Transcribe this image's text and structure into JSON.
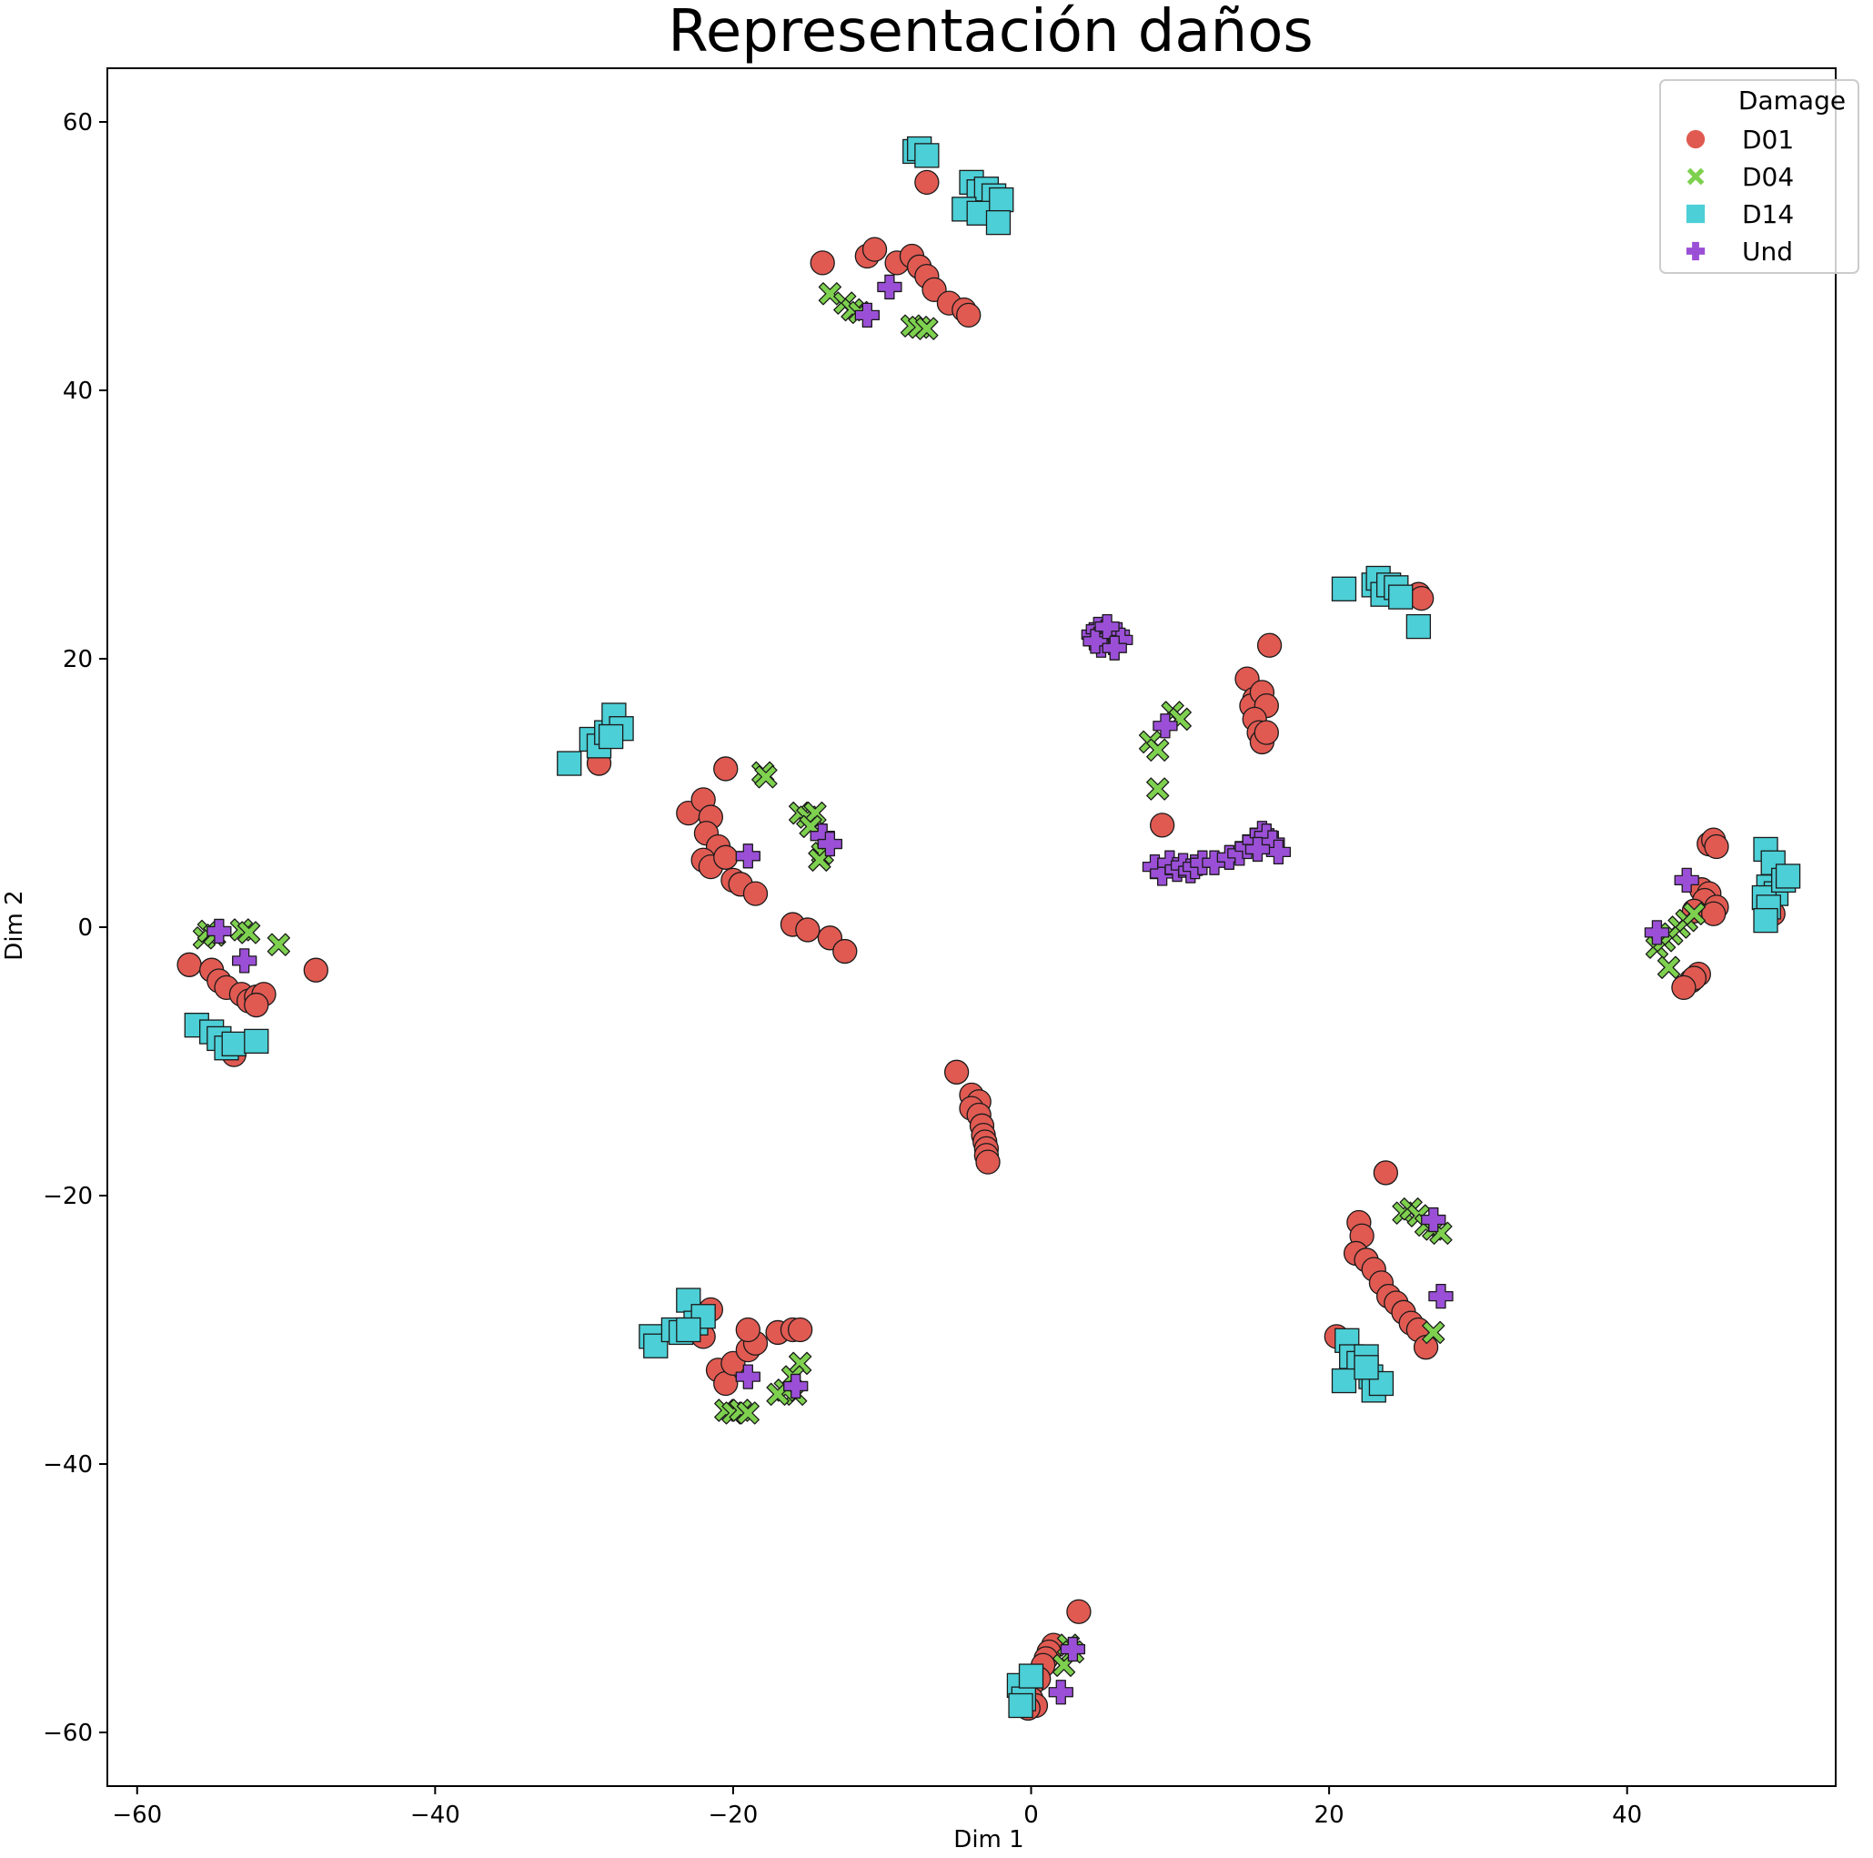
{
  "chart_data": {
    "type": "scatter",
    "title": "Representación daños",
    "xlabel": "Dim 1",
    "ylabel": "Dim 2",
    "xlim": [
      -62,
      54
    ],
    "ylim": [
      -64,
      64
    ],
    "xticks": [
      -60,
      -40,
      -20,
      0,
      20,
      40
    ],
    "yticks": [
      -60,
      -40,
      -20,
      0,
      20,
      40,
      60
    ],
    "xtick_labels": [
      "−60",
      "−40",
      "−20",
      "0",
      "20",
      "40"
    ],
    "ytick_labels": [
      "−60",
      "−40",
      "−20",
      "0",
      "20",
      "40",
      "60"
    ],
    "grid": false,
    "legend": {
      "title": "Damage",
      "placement": "top-right"
    },
    "series": [
      {
        "name": "D01",
        "marker": "circle",
        "color": "#e05a52",
        "points": [
          [
            -7,
            55.5
          ],
          [
            -14,
            49.5
          ],
          [
            -11,
            50
          ],
          [
            -10.5,
            50.5
          ],
          [
            -9,
            49.5
          ],
          [
            -8,
            50
          ],
          [
            -7.5,
            49.2
          ],
          [
            -7,
            48.5
          ],
          [
            -6.5,
            47.5
          ],
          [
            -5.5,
            46.5
          ],
          [
            -4.5,
            46
          ],
          [
            -4.2,
            45.6
          ],
          [
            -20.5,
            11.8
          ],
          [
            -23,
            8.5
          ],
          [
            -22,
            9.5
          ],
          [
            -21.5,
            8.2
          ],
          [
            -21.8,
            7
          ],
          [
            -21,
            6
          ],
          [
            -22,
            5
          ],
          [
            -21.5,
            4.5
          ],
          [
            -20.5,
            5.2
          ],
          [
            -20,
            3.5
          ],
          [
            -19.5,
            3.2
          ],
          [
            -18.5,
            2.5
          ],
          [
            -16,
            0.2
          ],
          [
            -15,
            -0.2
          ],
          [
            -13.5,
            -0.8
          ],
          [
            -12.5,
            -1.8
          ],
          [
            -29,
            12.2
          ],
          [
            -56.5,
            -2.8
          ],
          [
            -55,
            -3.2
          ],
          [
            -54.5,
            -4
          ],
          [
            -54,
            -4.5
          ],
          [
            -53,
            -5
          ],
          [
            -52.5,
            -5.5
          ],
          [
            -52,
            -5.2
          ],
          [
            -51.5,
            -5
          ],
          [
            -52,
            -5.8
          ],
          [
            -48,
            -3.2
          ],
          [
            -53.5,
            -9.5
          ],
          [
            -5,
            -10.8
          ],
          [
            -4,
            -12.5
          ],
          [
            -3.5,
            -13
          ],
          [
            -4,
            -13.5
          ],
          [
            -3.5,
            -14
          ],
          [
            -3.3,
            -14.8
          ],
          [
            -3.2,
            -15.5
          ],
          [
            -3.1,
            -16
          ],
          [
            -3,
            -16.5
          ],
          [
            -3,
            -17
          ],
          [
            -2.9,
            -17.5
          ],
          [
            -21.5,
            -28.5
          ],
          [
            -21,
            -33
          ],
          [
            -20.5,
            -34
          ],
          [
            -20,
            -32.5
          ],
          [
            -19,
            -31.5
          ],
          [
            -18.5,
            -31
          ],
          [
            -19,
            -30
          ],
          [
            -17,
            -30.2
          ],
          [
            -16,
            -30
          ],
          [
            -15.5,
            -30
          ],
          [
            -22,
            -30.5
          ],
          [
            8.8,
            7.6
          ],
          [
            14.5,
            18.5
          ],
          [
            15,
            17
          ],
          [
            14.8,
            16.5
          ],
          [
            15.5,
            17.5
          ],
          [
            15.8,
            16.5
          ],
          [
            15,
            15.5
          ],
          [
            15.3,
            14.5
          ],
          [
            15.5,
            13.8
          ],
          [
            15.8,
            14.5
          ],
          [
            16,
            21
          ],
          [
            26,
            24.8
          ],
          [
            26.2,
            24.5
          ],
          [
            23.8,
            -18.3
          ],
          [
            22,
            -22
          ],
          [
            22.2,
            -23
          ],
          [
            21.8,
            -24.3
          ],
          [
            22.5,
            -24.8
          ],
          [
            23,
            -25.5
          ],
          [
            23.5,
            -26.5
          ],
          [
            24,
            -27.5
          ],
          [
            24.5,
            -28
          ],
          [
            25,
            -28.7
          ],
          [
            25.5,
            -29.5
          ],
          [
            26,
            -30
          ],
          [
            26.5,
            -31.3
          ],
          [
            20.5,
            -30.5
          ],
          [
            45.5,
            6.2
          ],
          [
            45.8,
            6.5
          ],
          [
            46,
            6
          ],
          [
            45,
            2.8
          ],
          [
            45.5,
            2.5
          ],
          [
            45.2,
            2
          ],
          [
            46,
            1.5
          ],
          [
            44.5,
            1.2
          ],
          [
            45.8,
            1
          ],
          [
            44.8,
            -3.5
          ],
          [
            44.3,
            -4
          ],
          [
            44.5,
            -3.8
          ],
          [
            43.8,
            -4.5
          ],
          [
            49.5,
            1.5
          ],
          [
            49.8,
            1
          ],
          [
            3.2,
            -51
          ],
          [
            1.5,
            -53.5
          ],
          [
            1.2,
            -54
          ],
          [
            1,
            -54.5
          ],
          [
            0.8,
            -55
          ],
          [
            0.5,
            -56
          ],
          [
            0,
            -56.5
          ],
          [
            -0.5,
            -57
          ],
          [
            0,
            -57.5
          ],
          [
            0.3,
            -58
          ],
          [
            -0.2,
            -58.2
          ]
        ]
      },
      {
        "name": "D04",
        "marker": "x",
        "color": "#7ed14f",
        "points": [
          [
            -13.5,
            47.2
          ],
          [
            -12.5,
            46.5
          ],
          [
            -12,
            46
          ],
          [
            -11.5,
            45.8
          ],
          [
            -8,
            44.8
          ],
          [
            -7.5,
            44.7
          ],
          [
            -7,
            44.6
          ],
          [
            -18,
            11.5
          ],
          [
            -17.8,
            11.2
          ],
          [
            -15.5,
            8.5
          ],
          [
            -15,
            8.2
          ],
          [
            -14.5,
            8.5
          ],
          [
            -14,
            5.5
          ],
          [
            -14.2,
            5
          ],
          [
            -14.8,
            7.5
          ],
          [
            -55.5,
            -0.8
          ],
          [
            -55.2,
            -0.3
          ],
          [
            -54.8,
            -0.6
          ],
          [
            -53,
            -0.2
          ],
          [
            -52.5,
            -0.4
          ],
          [
            -50.5,
            -1.3
          ],
          [
            8,
            13.8
          ],
          [
            8.5,
            13.2
          ],
          [
            9.5,
            16
          ],
          [
            10,
            15.5
          ],
          [
            8.5,
            10.3
          ],
          [
            -20.5,
            -36
          ],
          [
            -20,
            -36.2
          ],
          [
            -19.5,
            -36
          ],
          [
            -19,
            -36.2
          ],
          [
            -15.5,
            -32.5
          ],
          [
            -16,
            -33.5
          ],
          [
            -15.8,
            -34.8
          ],
          [
            -16.5,
            -34.5
          ],
          [
            -17,
            -34.8
          ],
          [
            25,
            -21.3
          ],
          [
            25.5,
            -21
          ],
          [
            26,
            -21.5
          ],
          [
            26.5,
            -22.2
          ],
          [
            27,
            -22.5
          ],
          [
            27.5,
            -22.8
          ],
          [
            27,
            -30.2
          ],
          [
            42,
            -1.5
          ],
          [
            42.5,
            -1
          ],
          [
            43,
            -0.5
          ],
          [
            43.5,
            0
          ],
          [
            44,
            0.5
          ],
          [
            44.5,
            1
          ],
          [
            42.8,
            -3
          ],
          [
            2.5,
            -53.5
          ],
          [
            2.8,
            -54
          ],
          [
            2.2,
            -55
          ]
        ]
      },
      {
        "name": "D14",
        "marker": "square",
        "color": "#4ccfd6",
        "points": [
          [
            -7.8,
            57.8
          ],
          [
            -7.5,
            58
          ],
          [
            -7,
            57.5
          ],
          [
            -4,
            55.5
          ],
          [
            -3.5,
            54.8
          ],
          [
            -3,
            55
          ],
          [
            -2.5,
            54.5
          ],
          [
            -4.5,
            53.5
          ],
          [
            -3.5,
            53.2
          ],
          [
            -2,
            54.2
          ],
          [
            -2.2,
            52.5
          ],
          [
            -31,
            12.2
          ],
          [
            -29.5,
            14
          ],
          [
            -29,
            13.5
          ],
          [
            -28.5,
            14.5
          ],
          [
            -28,
            15.8
          ],
          [
            -27.5,
            14.8
          ],
          [
            -28.2,
            14.2
          ],
          [
            -56,
            -7.3
          ],
          [
            -55,
            -7.8
          ],
          [
            -54.5,
            -8.3
          ],
          [
            -54,
            -9
          ],
          [
            -53.5,
            -8.7
          ],
          [
            -52,
            -8.5
          ],
          [
            21,
            25.2
          ],
          [
            23,
            25.5
          ],
          [
            23.3,
            26
          ],
          [
            23.6,
            24.8
          ],
          [
            24,
            25.5
          ],
          [
            24.5,
            25.3
          ],
          [
            24.8,
            24.6
          ],
          [
            26,
            22.4
          ],
          [
            -25.5,
            -30.5
          ],
          [
            -25.2,
            -31.2
          ],
          [
            -24,
            -30
          ],
          [
            -23.5,
            -30.2
          ],
          [
            -23,
            -27.8
          ],
          [
            -22.5,
            -29.5
          ],
          [
            -22,
            -29
          ],
          [
            -23,
            -30
          ],
          [
            21.2,
            -30.8
          ],
          [
            21.5,
            -32
          ],
          [
            22,
            -32.5
          ],
          [
            22.5,
            -32
          ],
          [
            21,
            -33.8
          ],
          [
            22.8,
            -33.5
          ],
          [
            23,
            -34.5
          ],
          [
            23.5,
            -34
          ],
          [
            22.5,
            -32.8
          ],
          [
            49.3,
            5.8
          ],
          [
            49.8,
            4.8
          ],
          [
            49.5,
            3
          ],
          [
            50,
            2.5
          ],
          [
            49.2,
            2.2
          ],
          [
            50.5,
            3.5
          ],
          [
            49.5,
            1.5
          ],
          [
            49.3,
            0.5
          ],
          [
            50.8,
            3.8
          ],
          [
            -0.8,
            -56.5
          ],
          [
            -0.5,
            -57.5
          ],
          [
            0,
            -55.8
          ],
          [
            -0.7,
            -58
          ]
        ]
      },
      {
        "name": "Und",
        "marker": "plus",
        "color": "#9b4fd6",
        "points": [
          [
            -9.5,
            47.7
          ],
          [
            -11,
            45.6
          ],
          [
            -19,
            5.3
          ],
          [
            -14,
            6.8
          ],
          [
            -13.5,
            6.2
          ],
          [
            -54.5,
            -0.3
          ],
          [
            -52.8,
            -2.5
          ],
          [
            4.2,
            21.8
          ],
          [
            4.5,
            22.2
          ],
          [
            4.8,
            21.5
          ],
          [
            5,
            22
          ],
          [
            5.3,
            21.6
          ],
          [
            5.5,
            21.2
          ],
          [
            4.7,
            21
          ],
          [
            5.8,
            21.8
          ],
          [
            6,
            21.4
          ],
          [
            4.3,
            21.3
          ],
          [
            5.1,
            22.4
          ],
          [
            5.6,
            20.8
          ],
          [
            9,
            15
          ],
          [
            8.3,
            4.5
          ],
          [
            8.8,
            4
          ],
          [
            9.3,
            4.8
          ],
          [
            9.8,
            4.3
          ],
          [
            10.2,
            4.6
          ],
          [
            10.7,
            4.2
          ],
          [
            11,
            4.5
          ],
          [
            11.5,
            4.8
          ],
          [
            12.3,
            4.8
          ],
          [
            13.3,
            5.2
          ],
          [
            14,
            5.5
          ],
          [
            14.5,
            6
          ],
          [
            15,
            6.5
          ],
          [
            15.5,
            7
          ],
          [
            15.8,
            6.8
          ],
          [
            16.2,
            6.3
          ],
          [
            16.6,
            5.6
          ],
          [
            15.2,
            5.8
          ],
          [
            -19,
            -33.5
          ],
          [
            -15.8,
            -34.2
          ],
          [
            27,
            -21.8
          ],
          [
            27.5,
            -27.5
          ],
          [
            42,
            -0.4
          ],
          [
            44,
            3.5
          ],
          [
            2.8,
            -53.8
          ],
          [
            2,
            -57
          ]
        ]
      }
    ]
  }
}
